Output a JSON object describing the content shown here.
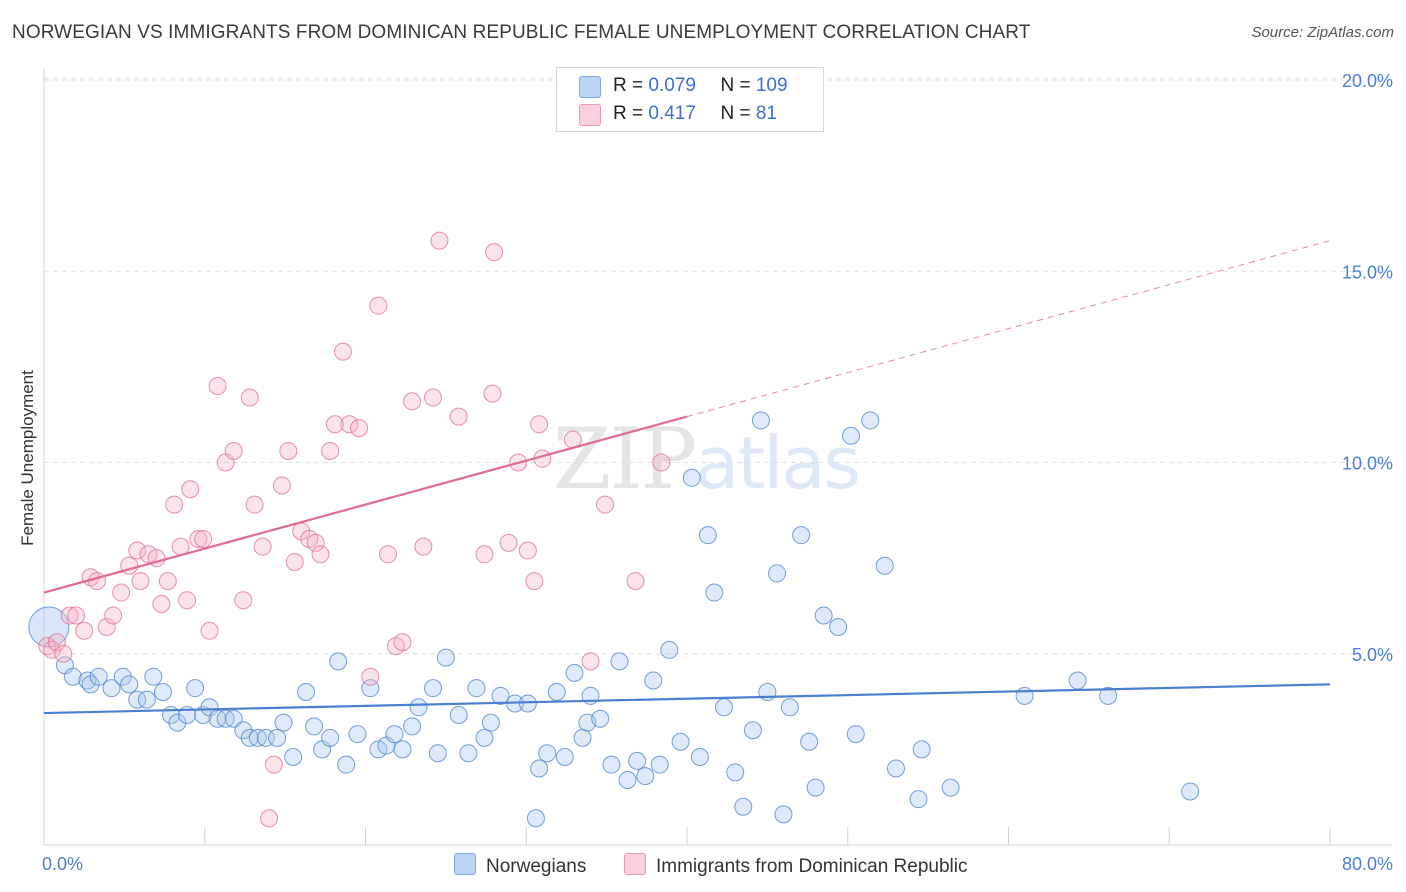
{
  "title": "NORWEGIAN VS IMMIGRANTS FROM DOMINICAN REPUBLIC FEMALE UNEMPLOYMENT CORRELATION CHART",
  "source": "Source: ZipAtlas.com",
  "watermark": {
    "zip": "ZIP",
    "atlas": "atlas"
  },
  "legend": {
    "rows": [
      {
        "r_label": "R = ",
        "r_value": "0.079",
        "n_label": "N = ",
        "n_value": "109",
        "color": "#a9c8f0"
      },
      {
        "r_label": "R = ",
        "r_value": " 0.417",
        "n_label": "N = ",
        "n_value": " 81",
        "color": "#f5b6c8"
      }
    ]
  },
  "bottom_legend": [
    {
      "label": "Norwegians",
      "color": "#a9c8f0"
    },
    {
      "label": "Immigrants from Dominican Republic",
      "color": "#f5b6c8"
    }
  ],
  "chart_data": {
    "type": "scatter",
    "title": "NORWEGIAN VS IMMIGRANTS FROM DOMINICAN REPUBLIC FEMALE UNEMPLOYMENT CORRELATION CHART",
    "ylabel": "Female Unemployment",
    "xlim": [
      0,
      80
    ],
    "ylim": [
      0,
      20
    ],
    "x_tick_labels": [
      "0.0%",
      "80.0%"
    ],
    "y_ticks": [
      5,
      10,
      15,
      20
    ],
    "y_tick_labels": [
      "5.0%",
      "10.0%",
      "15.0%",
      "20.0%"
    ],
    "grid": true,
    "series": [
      {
        "name": "Norwegians",
        "color": "#4a7fd0",
        "fill": "#a9c8f0",
        "trend": {
          "x0": 0,
          "y0": 3.45,
          "x1": 80,
          "y1": 4.2
        },
        "points": [
          [
            0.3,
            5.7
          ],
          [
            1.3,
            4.7
          ],
          [
            1.8,
            4.4
          ],
          [
            2.7,
            4.3
          ],
          [
            2.9,
            4.2
          ],
          [
            3.4,
            4.4
          ],
          [
            4.2,
            4.1
          ],
          [
            4.9,
            4.4
          ],
          [
            5.3,
            4.2
          ],
          [
            5.8,
            3.8
          ],
          [
            6.4,
            3.8
          ],
          [
            6.8,
            4.4
          ],
          [
            7.4,
            4.0
          ],
          [
            7.9,
            3.4
          ],
          [
            8.3,
            3.2
          ],
          [
            8.9,
            3.4
          ],
          [
            9.4,
            4.1
          ],
          [
            9.9,
            3.4
          ],
          [
            10.3,
            3.6
          ],
          [
            10.8,
            3.3
          ],
          [
            11.3,
            3.3
          ],
          [
            11.8,
            3.3
          ],
          [
            12.4,
            3.0
          ],
          [
            12.8,
            2.8
          ],
          [
            13.3,
            2.8
          ],
          [
            13.8,
            2.8
          ],
          [
            14.5,
            2.8
          ],
          [
            14.9,
            3.2
          ],
          [
            15.5,
            2.3
          ],
          [
            16.3,
            4.0
          ],
          [
            16.8,
            3.1
          ],
          [
            17.3,
            2.5
          ],
          [
            17.8,
            2.8
          ],
          [
            18.3,
            4.8
          ],
          [
            18.8,
            2.1
          ],
          [
            19.5,
            2.9
          ],
          [
            20.3,
            4.1
          ],
          [
            20.8,
            2.5
          ],
          [
            21.3,
            2.6
          ],
          [
            21.8,
            2.9
          ],
          [
            22.3,
            2.5
          ],
          [
            22.9,
            3.1
          ],
          [
            23.3,
            3.6
          ],
          [
            24.2,
            4.1
          ],
          [
            24.5,
            2.4
          ],
          [
            25.0,
            4.9
          ],
          [
            25.8,
            3.4
          ],
          [
            26.4,
            2.4
          ],
          [
            26.9,
            4.1
          ],
          [
            27.4,
            2.8
          ],
          [
            27.8,
            3.2
          ],
          [
            28.4,
            3.9
          ],
          [
            29.3,
            3.7
          ],
          [
            30.1,
            3.7
          ],
          [
            30.6,
            0.7
          ],
          [
            30.8,
            2.0
          ],
          [
            31.3,
            2.4
          ],
          [
            31.9,
            4.0
          ],
          [
            32.4,
            2.3
          ],
          [
            33.0,
            4.5
          ],
          [
            33.5,
            2.8
          ],
          [
            33.8,
            3.2
          ],
          [
            34.0,
            3.9
          ],
          [
            34.6,
            3.3
          ],
          [
            35.3,
            2.1
          ],
          [
            35.8,
            4.8
          ],
          [
            36.3,
            1.7
          ],
          [
            36.9,
            2.2
          ],
          [
            37.4,
            1.8
          ],
          [
            37.9,
            4.3
          ],
          [
            38.3,
            2.1
          ],
          [
            38.9,
            5.1
          ],
          [
            39.6,
            2.7
          ],
          [
            40.3,
            9.6
          ],
          [
            40.8,
            2.3
          ],
          [
            41.3,
            8.1
          ],
          [
            41.7,
            6.6
          ],
          [
            42.3,
            3.6
          ],
          [
            43.0,
            1.9
          ],
          [
            43.5,
            1.0
          ],
          [
            44.1,
            3.0
          ],
          [
            44.6,
            11.1
          ],
          [
            45.0,
            4.0
          ],
          [
            45.6,
            7.1
          ],
          [
            46.0,
            0.8
          ],
          [
            46.4,
            3.6
          ],
          [
            47.1,
            8.1
          ],
          [
            47.6,
            2.7
          ],
          [
            48.0,
            1.5
          ],
          [
            48.5,
            6.0
          ],
          [
            49.4,
            5.7
          ],
          [
            50.2,
            10.7
          ],
          [
            50.5,
            2.9
          ],
          [
            51.4,
            11.1
          ],
          [
            52.3,
            7.3
          ],
          [
            53.0,
            2.0
          ],
          [
            54.4,
            1.2
          ],
          [
            54.6,
            2.5
          ],
          [
            56.4,
            1.5
          ],
          [
            61.0,
            3.9
          ],
          [
            64.3,
            4.3
          ],
          [
            66.2,
            3.9
          ],
          [
            71.3,
            1.4
          ]
        ]
      },
      {
        "name": "Immigrants from Dominican Republic",
        "color": "#e06c92",
        "fill": "#f5b6c8",
        "trend": {
          "x0": 0,
          "y0": 6.6,
          "x1": 40,
          "y1": 11.2,
          "dash_x1": 80,
          "dash_y1": 15.8
        },
        "points": [
          [
            0.2,
            5.2
          ],
          [
            0.5,
            5.1
          ],
          [
            0.8,
            5.3
          ],
          [
            1.2,
            5.0
          ],
          [
            1.6,
            6.0
          ],
          [
            2.0,
            6.0
          ],
          [
            2.5,
            5.6
          ],
          [
            2.9,
            7.0
          ],
          [
            3.3,
            6.9
          ],
          [
            3.9,
            5.7
          ],
          [
            4.3,
            6.0
          ],
          [
            4.8,
            6.6
          ],
          [
            5.3,
            7.3
          ],
          [
            5.8,
            7.7
          ],
          [
            6.0,
            6.9
          ],
          [
            6.5,
            7.6
          ],
          [
            7.0,
            7.5
          ],
          [
            7.3,
            6.3
          ],
          [
            7.7,
            6.9
          ],
          [
            8.1,
            8.9
          ],
          [
            8.5,
            7.8
          ],
          [
            8.9,
            6.4
          ],
          [
            9.1,
            9.3
          ],
          [
            9.6,
            8.0
          ],
          [
            9.9,
            8.0
          ],
          [
            10.3,
            5.6
          ],
          [
            10.8,
            12.0
          ],
          [
            11.3,
            10.0
          ],
          [
            11.8,
            10.3
          ],
          [
            12.4,
            6.4
          ],
          [
            12.8,
            11.7
          ],
          [
            13.1,
            8.9
          ],
          [
            13.6,
            7.8
          ],
          [
            14.0,
            0.7
          ],
          [
            14.3,
            2.1
          ],
          [
            14.8,
            9.4
          ],
          [
            15.2,
            10.3
          ],
          [
            15.6,
            7.4
          ],
          [
            16.0,
            8.2
          ],
          [
            16.5,
            8.0
          ],
          [
            16.9,
            7.9
          ],
          [
            17.2,
            7.6
          ],
          [
            17.8,
            10.3
          ],
          [
            18.1,
            11.0
          ],
          [
            18.6,
            12.9
          ],
          [
            19.0,
            11.0
          ],
          [
            19.6,
            10.9
          ],
          [
            20.3,
            4.4
          ],
          [
            20.8,
            14.1
          ],
          [
            21.4,
            7.6
          ],
          [
            21.9,
            5.2
          ],
          [
            22.3,
            5.3
          ],
          [
            22.9,
            11.6
          ],
          [
            23.6,
            7.8
          ],
          [
            24.2,
            11.7
          ],
          [
            24.6,
            15.8
          ],
          [
            25.8,
            11.2
          ],
          [
            27.4,
            7.6
          ],
          [
            27.9,
            11.8
          ],
          [
            28.0,
            15.5
          ],
          [
            28.9,
            7.9
          ],
          [
            29.5,
            10.0
          ],
          [
            30.1,
            7.7
          ],
          [
            30.5,
            6.9
          ],
          [
            30.8,
            11.0
          ],
          [
            31.0,
            10.1
          ],
          [
            32.9,
            10.6
          ],
          [
            34.0,
            4.8
          ],
          [
            34.9,
            8.9
          ],
          [
            36.8,
            6.9
          ],
          [
            38.4,
            10.0
          ]
        ]
      }
    ]
  }
}
